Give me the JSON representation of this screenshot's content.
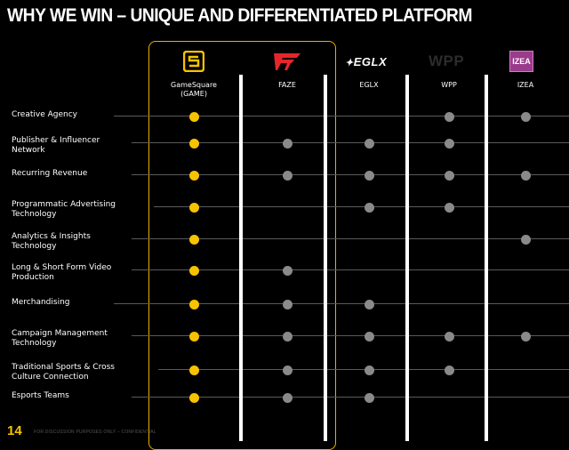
{
  "title": "WHY WE WIN – UNIQUE AND DIFFERENTIATED PLATFORM",
  "accent_color": "#f7c300",
  "companies": [
    {
      "key": "game",
      "label": "GameSquare\n(GAME)",
      "logo": "gamesquare-logo-icon"
    },
    {
      "key": "faze",
      "label": "FAZE",
      "logo": "faze-logo-icon"
    },
    {
      "key": "eglx",
      "label": "EGLX",
      "logo": "eglx-logo-icon"
    },
    {
      "key": "wpp",
      "label": "WPP",
      "logo": "wpp-logo-icon"
    },
    {
      "key": "izea",
      "label": "IZEA",
      "logo": "izea-logo-icon"
    }
  ],
  "logo_text": {
    "eglx": "EGLX",
    "wpp": "WPP",
    "izea": "IZEA"
  },
  "capabilities": [
    {
      "label": "Creative Agency",
      "has": [
        true,
        false,
        false,
        true,
        true
      ]
    },
    {
      "label": "Publisher & Influencer\nNetwork",
      "has": [
        true,
        true,
        true,
        true,
        false
      ]
    },
    {
      "label": "Recurring Revenue",
      "has": [
        true,
        true,
        true,
        true,
        true
      ]
    },
    {
      "label": "Programmatic Advertising\nTechnology",
      "has": [
        true,
        false,
        true,
        true,
        false
      ]
    },
    {
      "label": "Analytics & Insights\nTechnology",
      "has": [
        true,
        false,
        false,
        false,
        true
      ]
    },
    {
      "label": "Long & Short Form Video\nProduction",
      "has": [
        true,
        true,
        false,
        false,
        false
      ]
    },
    {
      "label": "Merchandising",
      "has": [
        true,
        true,
        true,
        false,
        false
      ]
    },
    {
      "label": "Campaign Management\nTechnology",
      "has": [
        true,
        true,
        true,
        true,
        true
      ]
    },
    {
      "label": "Traditional Sports & Cross\nCulture Connection",
      "has": [
        true,
        true,
        true,
        true,
        false
      ]
    },
    {
      "label": "Esports Teams",
      "has": [
        true,
        true,
        true,
        false,
        false
      ]
    }
  ],
  "page_number": "14",
  "footnote": "FOR DISCUSSION PURPOSES ONLY – CONFIDENTIAL"
}
